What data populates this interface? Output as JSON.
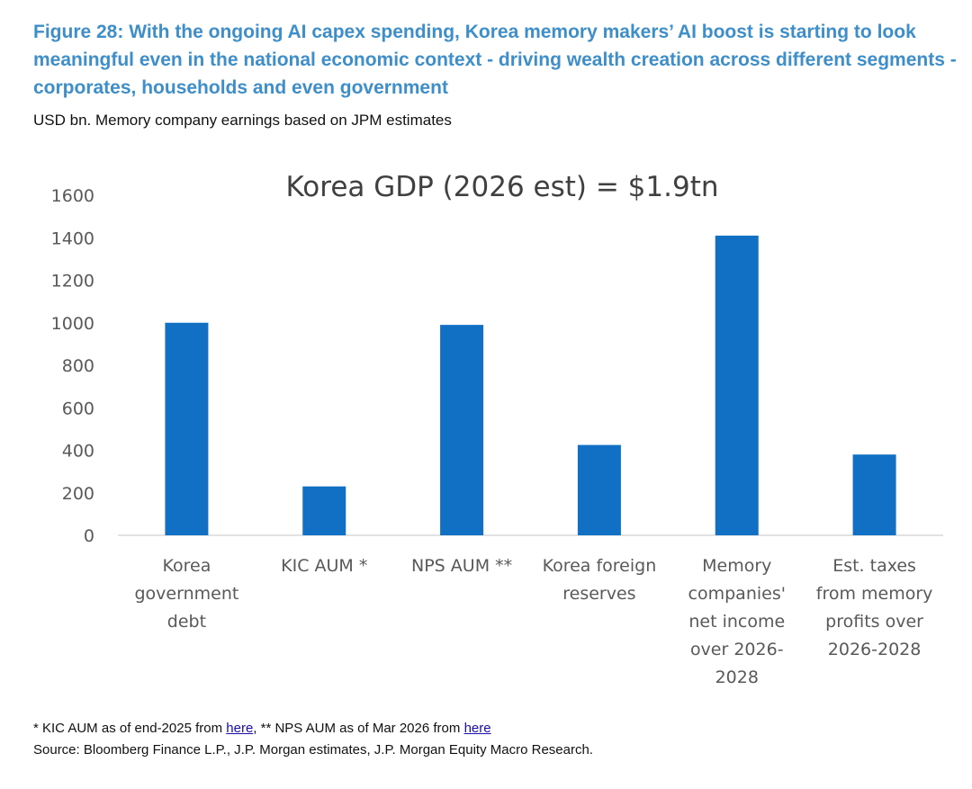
{
  "header": {
    "title": "Figure 28: With the ongoing AI capex spending, Korea memory makers’ AI boost is starting to look meaningful even in the national economic context - driving wealth creation across different segments - corporates, households and even government",
    "subtitle": "USD bn. Memory company earnings based on JPM estimates"
  },
  "chart_data": {
    "type": "bar",
    "title": "Korea GDP (2026 est) = $1.9tn",
    "categories": [
      [
        "Korea",
        "government",
        "debt"
      ],
      [
        "KIC AUM *"
      ],
      [
        "NPS AUM **"
      ],
      [
        "Korea foreign",
        "reserves"
      ],
      [
        "Memory",
        "companies'",
        "net income",
        "over 2026-",
        "2028"
      ],
      [
        "Est. taxes",
        "from memory",
        "profits over",
        "2026-2028"
      ]
    ],
    "values": [
      1000,
      230,
      990,
      425,
      1410,
      380
    ],
    "ylim": [
      0,
      1600
    ],
    "yticks": [
      0,
      200,
      400,
      600,
      800,
      1000,
      1200,
      1400,
      1600
    ],
    "grid": false,
    "legend": "none",
    "bar_color": "#1170c4"
  },
  "footnotes": {
    "line1_a": "* KIC AUM as of end-2025 from ",
    "link1": "here",
    "line1_b": ", ** NPS AUM as of Mar 2026 from ",
    "link2": "here",
    "source": "Source: Bloomberg Finance L.P., J.P. Morgan estimates, J.P. Morgan Equity Macro Research."
  }
}
